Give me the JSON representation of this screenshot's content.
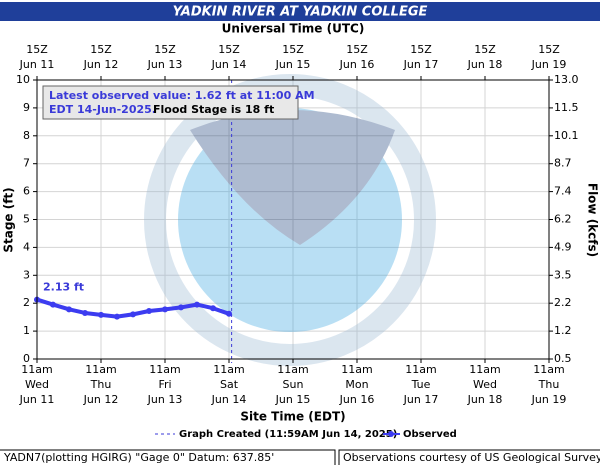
{
  "chart_data": {
    "type": "line",
    "title": "YADKIN RIVER AT YADKIN COLLEGE",
    "x2_axis_label": "Universal Time (UTC)",
    "x_axis_label": "Site Time (EDT)",
    "y_axis_label": "Stage (ft)",
    "y2_axis_label": "Flow (kcfs)",
    "xlim": [
      "2025-06-11T11:00",
      "2025-06-19T11:00"
    ],
    "xticks": [
      {
        "value": "2025-06-11T11:00",
        "label": [
          "11am",
          "Wed",
          "Jun 11"
        ]
      },
      {
        "value": "2025-06-12T11:00",
        "label": [
          "11am",
          "Thu",
          "Jun 12"
        ]
      },
      {
        "value": "2025-06-13T11:00",
        "label": [
          "11am",
          "Fri",
          "Jun 13"
        ]
      },
      {
        "value": "2025-06-14T11:00",
        "label": [
          "11am",
          "Sat",
          "Jun 14"
        ]
      },
      {
        "value": "2025-06-15T11:00",
        "label": [
          "11am",
          "Sun",
          "Jun 15"
        ]
      },
      {
        "value": "2025-06-16T11:00",
        "label": [
          "11am",
          "Mon",
          "Jun 16"
        ]
      },
      {
        "value": "2025-06-17T11:00",
        "label": [
          "11am",
          "Tue",
          "Jun 17"
        ]
      },
      {
        "value": "2025-06-18T11:00",
        "label": [
          "11am",
          "Wed",
          "Jun 18"
        ]
      },
      {
        "value": "2025-06-19T11:00",
        "label": [
          "11am",
          "Thu",
          "Jun 19"
        ]
      }
    ],
    "x2ticks": [
      {
        "value": "2025-06-11T11:00",
        "label": [
          "15Z",
          "Jun 11"
        ]
      },
      {
        "value": "2025-06-12T11:00",
        "label": [
          "15Z",
          "Jun 12"
        ]
      },
      {
        "value": "2025-06-13T11:00",
        "label": [
          "15Z",
          "Jun 13"
        ]
      },
      {
        "value": "2025-06-14T11:00",
        "label": [
          "15Z",
          "Jun 14"
        ]
      },
      {
        "value": "2025-06-15T11:00",
        "label": [
          "15Z",
          "Jun 15"
        ]
      },
      {
        "value": "2025-06-16T11:00",
        "label": [
          "15Z",
          "Jun 16"
        ]
      },
      {
        "value": "2025-06-17T11:00",
        "label": [
          "15Z",
          "Jun 17"
        ]
      },
      {
        "value": "2025-06-18T11:00",
        "label": [
          "15Z",
          "Jun 18"
        ]
      },
      {
        "value": "2025-06-19T11:00",
        "label": [
          "15Z",
          "Jun 19"
        ]
      }
    ],
    "ylim": [
      0,
      10
    ],
    "yticks": [
      0,
      1,
      2,
      3,
      4,
      5,
      6,
      7,
      8,
      9,
      10
    ],
    "y2lim": [
      0.5,
      13.0
    ],
    "y2ticks": [
      0.5,
      1.2,
      2.2,
      3.5,
      4.9,
      6.2,
      7.4,
      8.7,
      10.1,
      {
        "value": 11.5,
        "label": "11.5"
      },
      {
        "value": 13.0,
        "label": "13.0"
      }
    ],
    "grid": true,
    "x": [
      "2025-06-11T11:00",
      "2025-06-11T17:00",
      "2025-06-11T23:00",
      "2025-06-12T05:00",
      "2025-06-12T11:00",
      "2025-06-12T17:00",
      "2025-06-12T23:00",
      "2025-06-13T05:00",
      "2025-06-13T11:00",
      "2025-06-13T17:00",
      "2025-06-13T23:00",
      "2025-06-14T05:00",
      "2025-06-14T11:00"
    ],
    "series": [
      {
        "name": "Observed",
        "color": "#3c3cf0",
        "values": [
          2.13,
          1.95,
          1.78,
          1.65,
          1.58,
          1.52,
          1.6,
          1.72,
          1.78,
          1.85,
          1.95,
          1.82,
          1.62
        ]
      }
    ],
    "first_value_label": "2.13 ft",
    "created_time": "2025-06-14T11:59",
    "created_label": "Graph Created (11:59AM Jun 14, 2025)",
    "annotation_line1": "Latest observed value: 1.62 ft at 11:00 AM",
    "annotation_line2": "EDT 14-Jun-2025.",
    "annotation_flood": "Flood Stage is 18 ft",
    "footer_left": "YADN7(plotting HGIRG) \"Gage 0\" Datum: 637.85'",
    "footer_right": "Observations courtesy of US Geological Survey"
  }
}
